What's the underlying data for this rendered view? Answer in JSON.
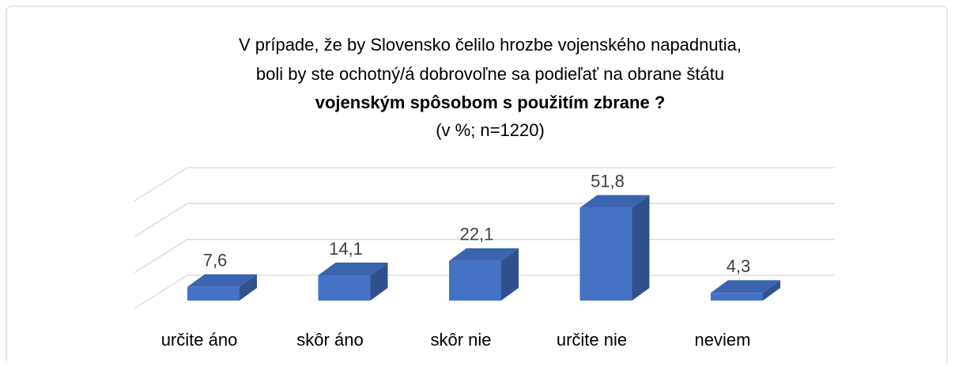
{
  "chart_data": {
    "type": "bar3d",
    "title": "V prípade, že by Slovensko čelilo hrozbe vojenského napadnutia,",
    "title_line2": "boli by ste ochotný/á dobrovoľne sa podieľať na obrane štátu",
    "title_line3": "vojenským spôsobom s použitím zbrane ?",
    "subtitle": "(v %; n=1220)",
    "categories": [
      "určite áno",
      "skôr áno",
      "skôr nie",
      "určite nie",
      "neviem"
    ],
    "values": [
      7.6,
      14.1,
      22.1,
      51.8,
      4.3
    ],
    "value_labels": [
      "7,6",
      "14,1",
      "22,1",
      "51,8",
      "4,3"
    ],
    "color": "#4472c4",
    "ylim": [
      0,
      60
    ],
    "yticks": [
      0,
      20,
      40,
      60
    ],
    "grid": true
  }
}
